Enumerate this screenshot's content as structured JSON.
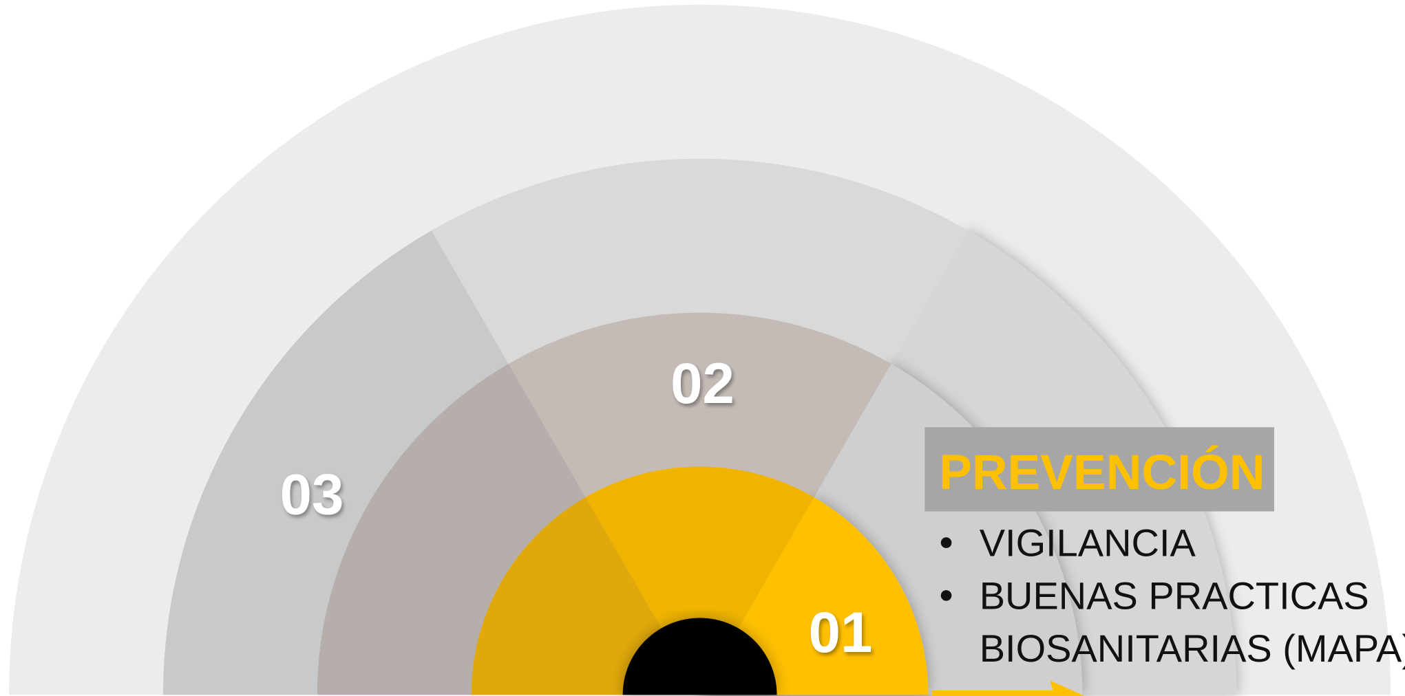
{
  "segments": [
    "01",
    "02",
    "03"
  ],
  "panel": {
    "title": "PREVENCIÓN",
    "items": [
      [
        "VIGILANCIA"
      ],
      [
        "BUENAS PRACTICAS",
        "BIOSANITARIAS (MAPA)"
      ]
    ]
  }
}
